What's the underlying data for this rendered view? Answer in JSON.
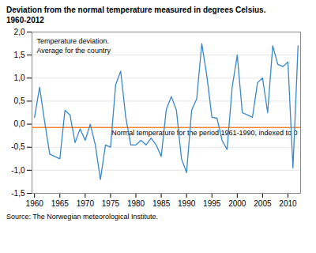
{
  "chart_data": {
    "type": "line",
    "title": "Deviation from the normal temperature measured in degrees Celsius.",
    "subtitle": "1960-2012",
    "source": "Source: The Norwegian meteorological Institute.",
    "annotations": [
      "Temperature deviation.\nAverage for the country"
    ],
    "reference_line": {
      "value": -0.07,
      "color": "#f0883a",
      "label": "Normal temperature for the period 1961-1990, indexed to 0"
    },
    "x": [
      1960,
      1961,
      1962,
      1963,
      1964,
      1965,
      1966,
      1967,
      1968,
      1969,
      1970,
      1971,
      1972,
      1973,
      1974,
      1975,
      1976,
      1977,
      1978,
      1979,
      1980,
      1981,
      1982,
      1983,
      1984,
      1985,
      1986,
      1987,
      1988,
      1989,
      1990,
      1991,
      1992,
      1993,
      1994,
      1995,
      1996,
      1997,
      1998,
      1999,
      2000,
      2001,
      2002,
      2003,
      2004,
      2005,
      2006,
      2007,
      2008,
      2009,
      2010,
      2011,
      2012
    ],
    "values": [
      0.15,
      0.8,
      0.05,
      -0.65,
      -0.7,
      -0.75,
      0.3,
      0.2,
      -0.4,
      -0.1,
      -0.35,
      0.0,
      -0.45,
      -1.2,
      -0.45,
      -0.5,
      0.85,
      1.15,
      0.15,
      -0.45,
      -0.45,
      -0.35,
      -0.45,
      -0.3,
      -0.45,
      -0.7,
      0.32,
      0.6,
      0.3,
      -0.75,
      -1.05,
      0.3,
      0.55,
      1.75,
      1.05,
      0.15,
      0.13,
      -0.35,
      -0.55,
      0.8,
      1.5,
      0.25,
      0.2,
      0.15,
      0.9,
      1.0,
      0.25,
      1.7,
      1.3,
      1.25,
      1.35,
      -0.95,
      1.7
    ],
    "color": "#3a87c8",
    "xlim": [
      1959.5,
      2012.5
    ],
    "xticks": [
      1960,
      1965,
      1970,
      1975,
      1980,
      1985,
      1990,
      1995,
      2000,
      2005,
      2010
    ],
    "ylim": [
      -1.5,
      2.0
    ],
    "yticks": [
      {
        "value": -1.5,
        "label": "-1,5"
      },
      {
        "value": -1.0,
        "label": "-1,0"
      },
      {
        "value": -0.5,
        "label": "-0,5"
      },
      {
        "value": 0.0,
        "label": "0,0"
      },
      {
        "value": 0.5,
        "label": "0,5"
      },
      {
        "value": 1.0,
        "label": "1,0"
      },
      {
        "value": 1.5,
        "label": "1,5"
      },
      {
        "value": 2.0,
        "label": "2,0"
      }
    ],
    "grid": "y"
  }
}
